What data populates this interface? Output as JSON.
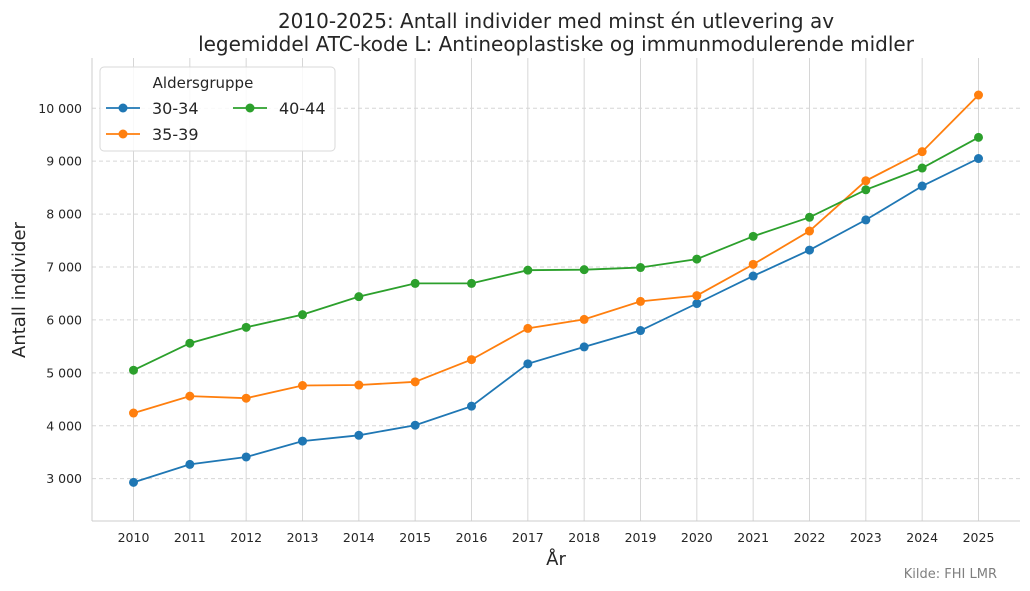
{
  "chart_data": {
    "type": "line",
    "title_lines": [
      "2010-2025: Antall individer med minst én utlevering av",
      "legemiddel ATC-kode L: Antineoplastiske og immunmodulerende midler"
    ],
    "xlabel": "År",
    "ylabel": "Antall individer",
    "source": "Kilde: FHI LMR",
    "x": [
      "2010",
      "2011",
      "2012",
      "2013",
      "2014",
      "2015",
      "2016",
      "2017",
      "2018",
      "2019",
      "2020",
      "2021",
      "2022",
      "2023",
      "2024",
      "2025"
    ],
    "ylim": [
      2200,
      10950
    ],
    "yticks": [
      3000,
      4000,
      5000,
      6000,
      7000,
      8000,
      9000,
      10000
    ],
    "ytick_labels": [
      "3 000",
      "4 000",
      "5 000",
      "6 000",
      "7 000",
      "8 000",
      "9 000",
      "10 000"
    ],
    "grid": true,
    "legend": {
      "title": "Aldersgruppe",
      "placement": "top-left",
      "columns": 2
    },
    "series": [
      {
        "name": "30-34",
        "color": "#1f77b4",
        "values": [
          2930,
          3270,
          3410,
          3710,
          3820,
          4010,
          4370,
          5170,
          5490,
          5800,
          6310,
          6830,
          7320,
          7890,
          8530,
          9050
        ]
      },
      {
        "name": "35-39",
        "color": "#ff7f0e",
        "values": [
          4240,
          4560,
          4520,
          4760,
          4770,
          4830,
          5250,
          5840,
          6010,
          6350,
          6460,
          7050,
          7680,
          8630,
          9180,
          10250
        ]
      },
      {
        "name": "40-44",
        "color": "#2ca02c",
        "values": [
          5050,
          5560,
          5860,
          6100,
          6440,
          6690,
          6690,
          6940,
          6950,
          6990,
          7150,
          7580,
          7940,
          8460,
          8870,
          9450
        ]
      }
    ]
  }
}
